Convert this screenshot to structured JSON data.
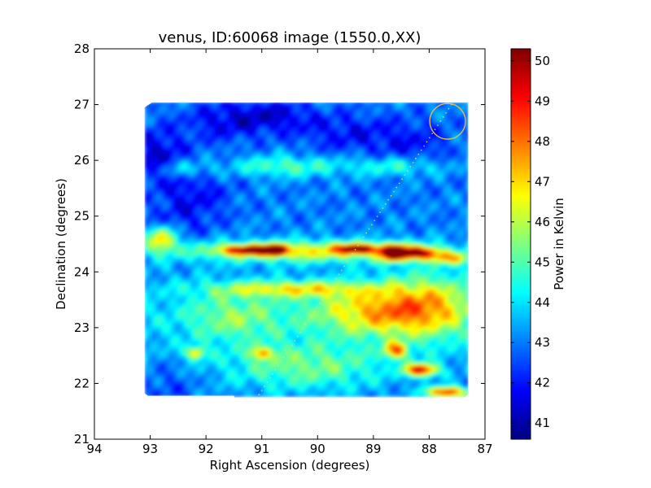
{
  "chart_data": {
    "type": "heatmap",
    "title": "venus, ID:60068 image (1550.0,XX)",
    "xlabel": "Right Ascension (degrees)",
    "ylabel": "Declination (degrees)",
    "xlim": [
      94,
      87
    ],
    "ylim": [
      21,
      28
    ],
    "x_ticks": [
      "94",
      "93",
      "92",
      "91",
      "90",
      "89",
      "88",
      "87"
    ],
    "y_ticks": [
      "21",
      "22",
      "23",
      "24",
      "25",
      "26",
      "27",
      "28"
    ],
    "colorbar": {
      "label": "Power in Kelvin",
      "range": [
        40.6,
        50.3
      ],
      "ticks": [
        "41",
        "42",
        "43",
        "44",
        "45",
        "46",
        "47",
        "48",
        "49",
        "50"
      ]
    },
    "map_extent": {
      "ra": [
        93.1,
        87.3
      ],
      "dec": [
        21.75,
        27.05
      ]
    },
    "background_level": 43.0,
    "features": [
      {
        "ra": 92.9,
        "dec": 26.1,
        "value": 41.4,
        "sigma_ra": 0.35,
        "sigma_dec": 0.35
      },
      {
        "ra": 92.2,
        "dec": 25.4,
        "value": 41.9,
        "sigma_ra": 0.45,
        "sigma_dec": 0.4
      },
      {
        "ra": 91.7,
        "dec": 26.7,
        "value": 41.8,
        "sigma_ra": 0.5,
        "sigma_dec": 0.25
      },
      {
        "ra": 90.8,
        "dec": 26.8,
        "value": 41.6,
        "sigma_ra": 0.5,
        "sigma_dec": 0.2
      },
      {
        "ra": 89.5,
        "dec": 26.5,
        "value": 41.9,
        "sigma_ra": 0.6,
        "sigma_dec": 0.25
      },
      {
        "ra": 88.3,
        "dec": 26.3,
        "value": 42.0,
        "sigma_ra": 0.5,
        "sigma_dec": 0.3
      },
      {
        "ra": 92.6,
        "dec": 24.9,
        "value": 42.5,
        "sigma_ra": 0.4,
        "sigma_dec": 0.3
      },
      {
        "ra": 92.7,
        "dec": 22.0,
        "value": 42.3,
        "sigma_ra": 0.4,
        "sigma_dec": 0.3
      },
      {
        "ra": 90.6,
        "dec": 25.9,
        "value": 45.0,
        "sigma_ra": 0.7,
        "sigma_dec": 0.13
      },
      {
        "ra": 92.4,
        "dec": 25.85,
        "value": 44.6,
        "sigma_ra": 0.35,
        "sigma_dec": 0.12
      },
      {
        "ra": 88.6,
        "dec": 25.9,
        "value": 44.7,
        "sigma_ra": 0.6,
        "sigma_dec": 0.12
      },
      {
        "ra": 90.2,
        "dec": 24.38,
        "value": 46.5,
        "sigma_ra": 1.6,
        "sigma_dec": 0.13
      },
      {
        "ra": 91.2,
        "dec": 24.4,
        "value": 48.5,
        "sigma_ra": 0.35,
        "sigma_dec": 0.06
      },
      {
        "ra": 90.75,
        "dec": 24.4,
        "value": 50.0,
        "sigma_ra": 0.1,
        "sigma_dec": 0.06
      },
      {
        "ra": 89.3,
        "dec": 24.42,
        "value": 48.5,
        "sigma_ra": 0.25,
        "sigma_dec": 0.06
      },
      {
        "ra": 88.65,
        "dec": 24.35,
        "value": 50.0,
        "sigma_ra": 0.15,
        "sigma_dec": 0.1
      },
      {
        "ra": 88.2,
        "dec": 24.35,
        "value": 48.5,
        "sigma_ra": 0.25,
        "sigma_dec": 0.08
      },
      {
        "ra": 92.8,
        "dec": 24.6,
        "value": 47.0,
        "sigma_ra": 0.2,
        "sigma_dec": 0.15
      },
      {
        "ra": 87.6,
        "dec": 24.25,
        "value": 46.0,
        "sigma_ra": 0.3,
        "sigma_dec": 0.08
      },
      {
        "ra": 90.5,
        "dec": 23.7,
        "value": 46.0,
        "sigma_ra": 1.0,
        "sigma_dec": 0.1
      },
      {
        "ra": 89.0,
        "dec": 23.3,
        "value": 46.2,
        "sigma_ra": 0.8,
        "sigma_dec": 0.3
      },
      {
        "ra": 88.0,
        "dec": 23.4,
        "value": 45.8,
        "sigma_ra": 0.6,
        "sigma_dec": 0.4
      },
      {
        "ra": 91.5,
        "dec": 23.2,
        "value": 44.8,
        "sigma_ra": 0.6,
        "sigma_dec": 0.3
      },
      {
        "ra": 92.2,
        "dec": 22.55,
        "value": 46.5,
        "sigma_ra": 0.12,
        "sigma_dec": 0.08
      },
      {
        "ra": 91.0,
        "dec": 22.55,
        "value": 46.0,
        "sigma_ra": 0.15,
        "sigma_dec": 0.08
      },
      {
        "ra": 88.6,
        "dec": 22.6,
        "value": 47.0,
        "sigma_ra": 0.15,
        "sigma_dec": 0.1
      },
      {
        "ra": 88.15,
        "dec": 22.25,
        "value": 49.0,
        "sigma_ra": 0.2,
        "sigma_dec": 0.08
      },
      {
        "ra": 87.7,
        "dec": 21.85,
        "value": 48.8,
        "sigma_ra": 0.25,
        "sigma_dec": 0.07
      },
      {
        "ra": 90.2,
        "dec": 22.3,
        "value": 45.0,
        "sigma_ra": 1.0,
        "sigma_dec": 0.3
      }
    ],
    "overlay_circle": {
      "ra": 87.67,
      "dec": 26.7,
      "radius_deg": 0.32,
      "color": "#e6c040"
    },
    "overlay_track": {
      "from": [
        91.05,
        21.8
      ],
      "to": [
        87.6,
        27.0
      ],
      "color": "#e8e070"
    }
  }
}
